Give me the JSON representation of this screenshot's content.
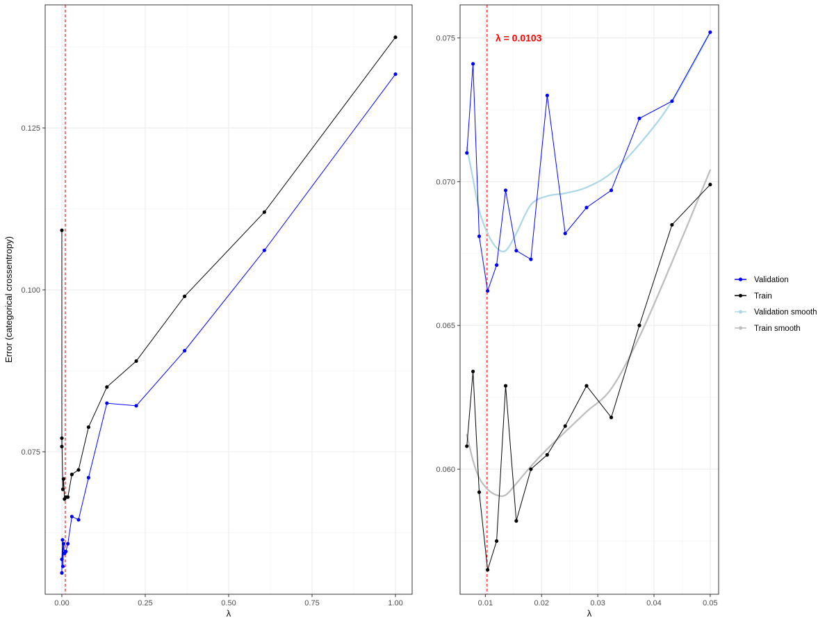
{
  "chart_data": [
    {
      "type": "line",
      "xlabel": "λ",
      "ylabel": "Error (categorical crossentropy)",
      "xlim": [
        -0.05,
        1.05
      ],
      "ylim": [
        0.053,
        0.144
      ],
      "x_ticks": [
        0,
        0.25,
        0.5,
        0.75,
        1
      ],
      "x_tick_labels": [
        "0.00",
        "0.25",
        "0.50",
        "0.75",
        "1.00"
      ],
      "y_ticks": [
        0.075,
        0.1,
        0.125
      ],
      "y_tick_labels": [
        "0.075",
        "0.100",
        "0.125"
      ],
      "grid": true,
      "vline": {
        "x": 0.0103,
        "color": "#ff0000",
        "style": "dashed"
      },
      "series": [
        {
          "name": "Train",
          "color": "#000000",
          "x": [
            0.0,
            0.0,
            0.0,
            0.003,
            0.005,
            0.008,
            0.012,
            0.018,
            0.03,
            0.05,
            0.08,
            0.135,
            0.223,
            0.368,
            0.607,
            1.0
          ],
          "y": [
            0.1092,
            0.0758,
            0.0771,
            0.0692,
            0.0708,
            0.0677,
            0.068,
            0.068,
            0.0715,
            0.0722,
            0.0788,
            0.085,
            0.089,
            0.099,
            0.112,
            0.139
          ]
        },
        {
          "name": "Validation",
          "color": "#0000ff",
          "x": [
            0.0,
            0.0,
            0.002,
            0.003,
            0.005,
            0.008,
            0.012,
            0.018,
            0.03,
            0.05,
            0.08,
            0.135,
            0.223,
            0.368,
            0.607,
            1.0
          ],
          "y": [
            0.0563,
            0.0584,
            0.0614,
            0.0573,
            0.0608,
            0.0593,
            0.0596,
            0.0608,
            0.065,
            0.0645,
            0.071,
            0.0825,
            0.0821,
            0.0906,
            0.1061,
            0.1333
          ]
        }
      ]
    },
    {
      "type": "line",
      "xlabel": "λ",
      "ylabel": "",
      "xlim": [
        0.0055,
        0.0515
      ],
      "ylim": [
        0.05565,
        0.07615
      ],
      "x_ticks": [
        0.01,
        0.02,
        0.03,
        0.04,
        0.05
      ],
      "x_tick_labels": [
        "0.01",
        "0.02",
        "0.03",
        "0.04",
        "0.05"
      ],
      "y_ticks": [
        0.06,
        0.065,
        0.07,
        0.075
      ],
      "y_tick_labels": [
        "0.060",
        "0.065",
        "0.070",
        "0.075"
      ],
      "grid": true,
      "vline": {
        "x": 0.0103,
        "color": "#ff0000",
        "style": "dashed"
      },
      "annotation": {
        "text": "λ = 0.0103",
        "x": 0.0118,
        "y": 0.075,
        "color": "#ff0000"
      },
      "series": [
        {
          "name": "Validation",
          "color": "#0000ff",
          "x": [
            0.0067,
            0.0078,
            0.0089,
            0.0104,
            0.012,
            0.0136,
            0.0155,
            0.0181,
            0.021,
            0.0242,
            0.028,
            0.0324,
            0.0374,
            0.0432,
            0.05
          ],
          "y": [
            0.071,
            0.0741,
            0.0681,
            0.0662,
            0.0671,
            0.0697,
            0.0676,
            0.0673,
            0.073,
            0.0682,
            0.0691,
            0.0697,
            0.0722,
            0.0728,
            0.0752
          ]
        },
        {
          "name": "Train",
          "color": "#000000",
          "x": [
            0.0067,
            0.0078,
            0.0089,
            0.0104,
            0.012,
            0.0136,
            0.0155,
            0.0181,
            0.021,
            0.0242,
            0.028,
            0.0324,
            0.0374,
            0.0432,
            0.05
          ],
          "y": [
            0.0608,
            0.0634,
            0.0592,
            0.0565,
            0.0575,
            0.0629,
            0.0582,
            0.06,
            0.0605,
            0.0615,
            0.0629,
            0.0618,
            0.065,
            0.0685,
            0.0699
          ]
        },
        {
          "name": "Validation smooth",
          "color": "#add8e6",
          "smooth": true,
          "x": [
            0.0067,
            0.0078,
            0.0089,
            0.0104,
            0.012,
            0.0136,
            0.0155,
            0.0181,
            0.021,
            0.0242,
            0.028,
            0.0324,
            0.0374,
            0.0432,
            0.05
          ],
          "y": [
            0.0712,
            0.0701,
            0.069,
            0.0682,
            0.0677,
            0.0676,
            0.0682,
            0.0692,
            0.0695,
            0.0696,
            0.0698,
            0.0703,
            0.0713,
            0.0728,
            0.0752
          ]
        },
        {
          "name": "Train smooth",
          "color": "#bebebe",
          "smooth": true,
          "x": [
            0.0067,
            0.0078,
            0.0089,
            0.0104,
            0.012,
            0.0136,
            0.0155,
            0.0181,
            0.021,
            0.0242,
            0.028,
            0.0324,
            0.0374,
            0.0432,
            0.05
          ],
          "y": [
            0.0612,
            0.0603,
            0.0597,
            0.0593,
            0.0591,
            0.0591,
            0.0595,
            0.0601,
            0.0607,
            0.0613,
            0.062,
            0.0628,
            0.0646,
            0.0672,
            0.0704
          ]
        }
      ]
    }
  ],
  "legend": {
    "items": [
      {
        "label": "Validation",
        "color": "#0000ff",
        "points": true
      },
      {
        "label": "Train",
        "color": "#000000",
        "points": true
      },
      {
        "label": "Validation smooth",
        "color": "#add8e6",
        "points": true
      },
      {
        "label": "Train smooth",
        "color": "#bebebe",
        "points": true
      }
    ]
  }
}
